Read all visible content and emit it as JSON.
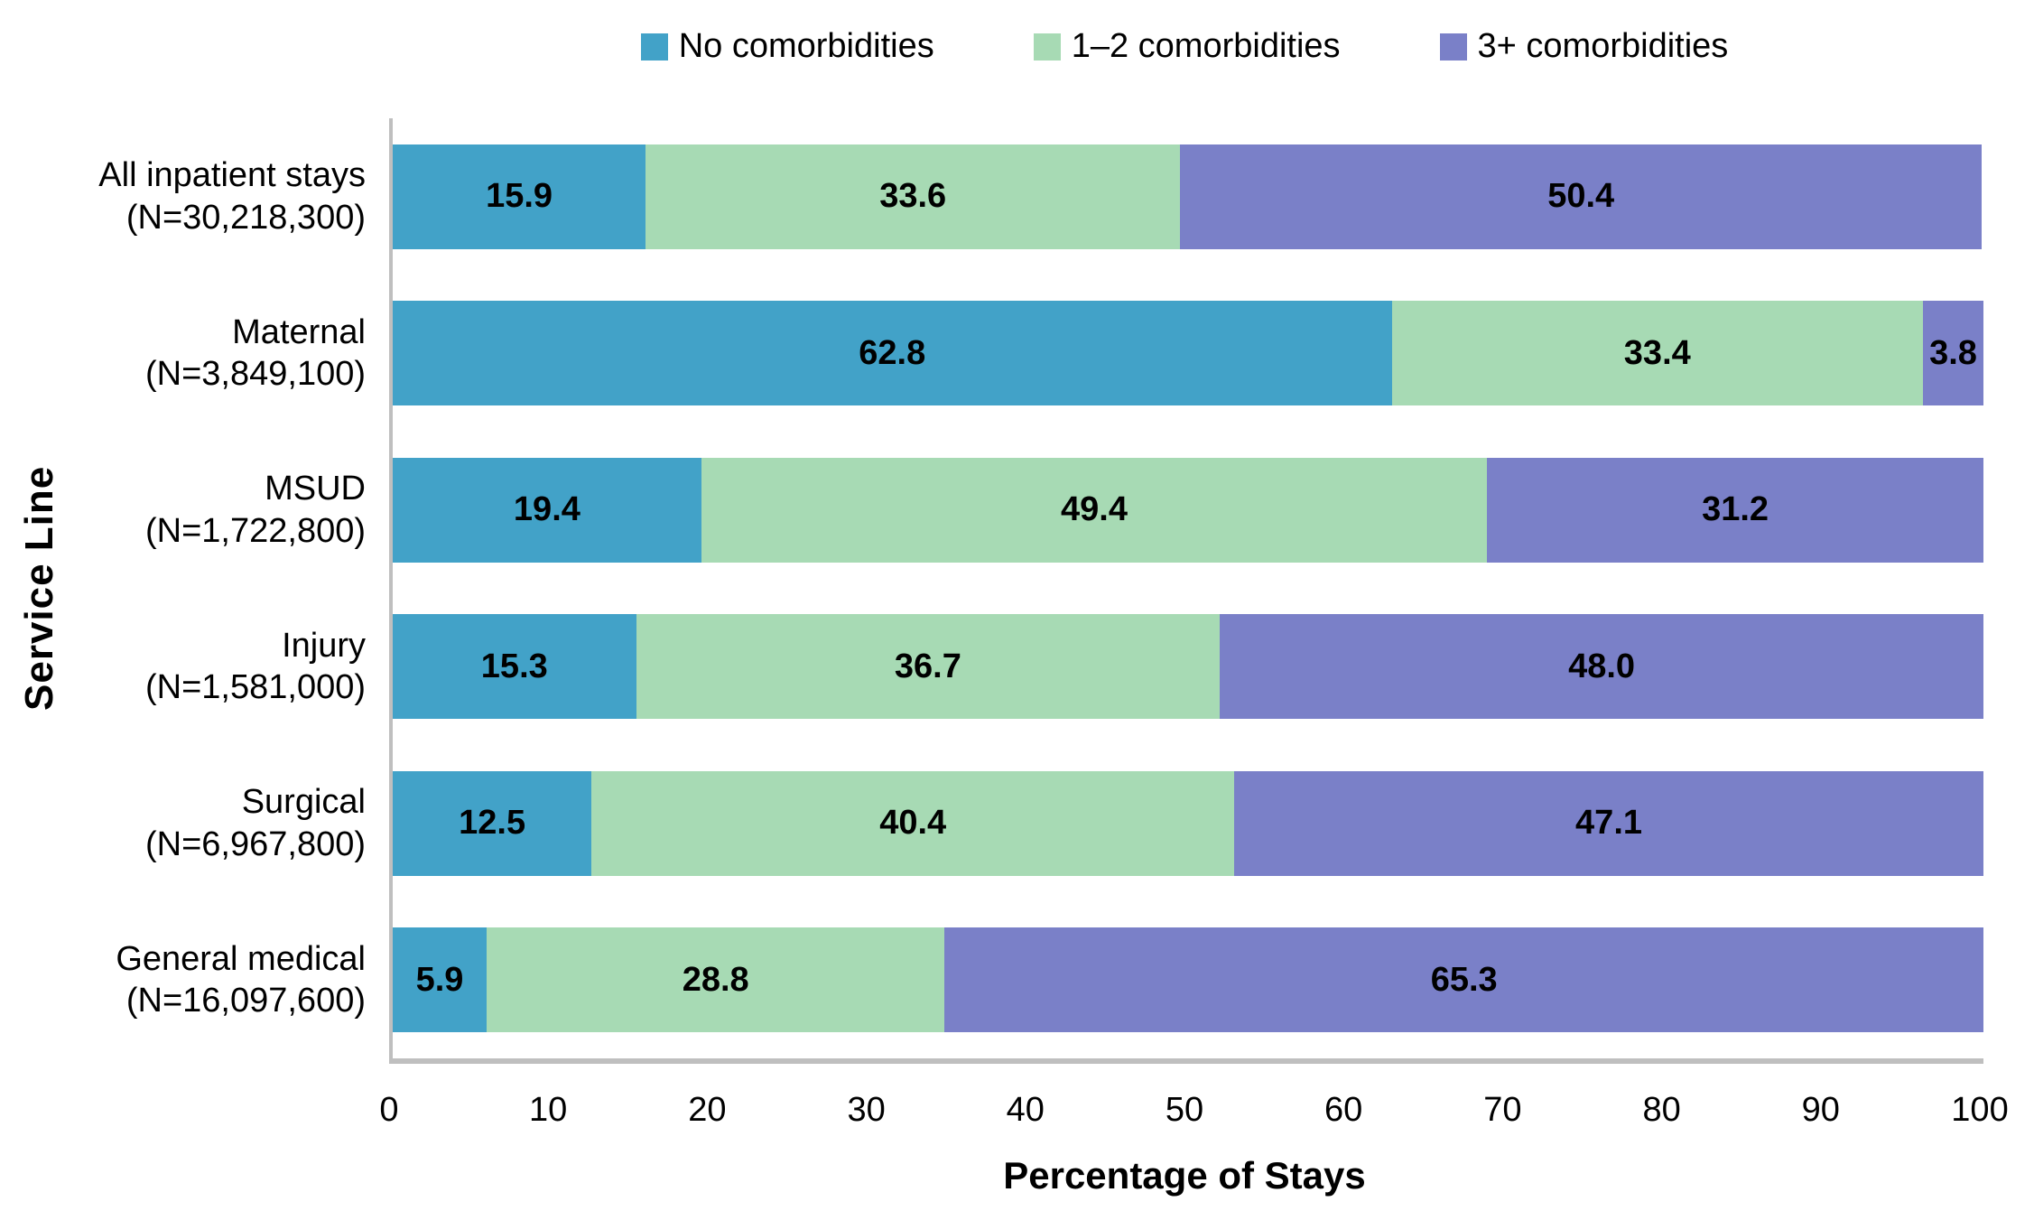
{
  "chart_data": {
    "type": "bar",
    "orientation": "horizontal",
    "stacked": true,
    "title": "",
    "xlabel": "Percentage of Stays",
    "ylabel": "Service Line",
    "xlim": [
      0,
      100
    ],
    "xticks": [
      0,
      10,
      20,
      30,
      40,
      50,
      60,
      70,
      80,
      90,
      100
    ],
    "grid": false,
    "legend_position": "top-center",
    "value_labels": "inside-center, bold, one decimal",
    "categories": [
      {
        "name": "All inpatient stays",
        "n": "(N=30,218,300)"
      },
      {
        "name": "Maternal",
        "n": "(N=3,849,100)"
      },
      {
        "name": "MSUD",
        "n": "(N=1,722,800)"
      },
      {
        "name": "Injury",
        "n": "(N=1,581,000)"
      },
      {
        "name": "Surgical",
        "n": "(N=6,967,800)"
      },
      {
        "name": "General medical",
        "n": "(N=16,097,600)"
      }
    ],
    "series": [
      {
        "name": "No comorbidities",
        "color": "#42A2C8",
        "values": [
          15.9,
          62.8,
          19.4,
          15.3,
          12.5,
          5.9
        ]
      },
      {
        "name": "1–2 comorbidities",
        "color": "#A7DAB4",
        "values": [
          33.6,
          33.4,
          49.4,
          36.7,
          40.4,
          28.8
        ]
      },
      {
        "name": "3+ comorbidities",
        "color": "#7A80C8",
        "values": [
          50.4,
          3.8,
          31.2,
          48.0,
          47.1,
          65.3
        ]
      }
    ]
  },
  "style": {
    "axis_line_color": "#BFBFBF",
    "label_text_color": "#000000",
    "background": "#FFFFFF"
  }
}
